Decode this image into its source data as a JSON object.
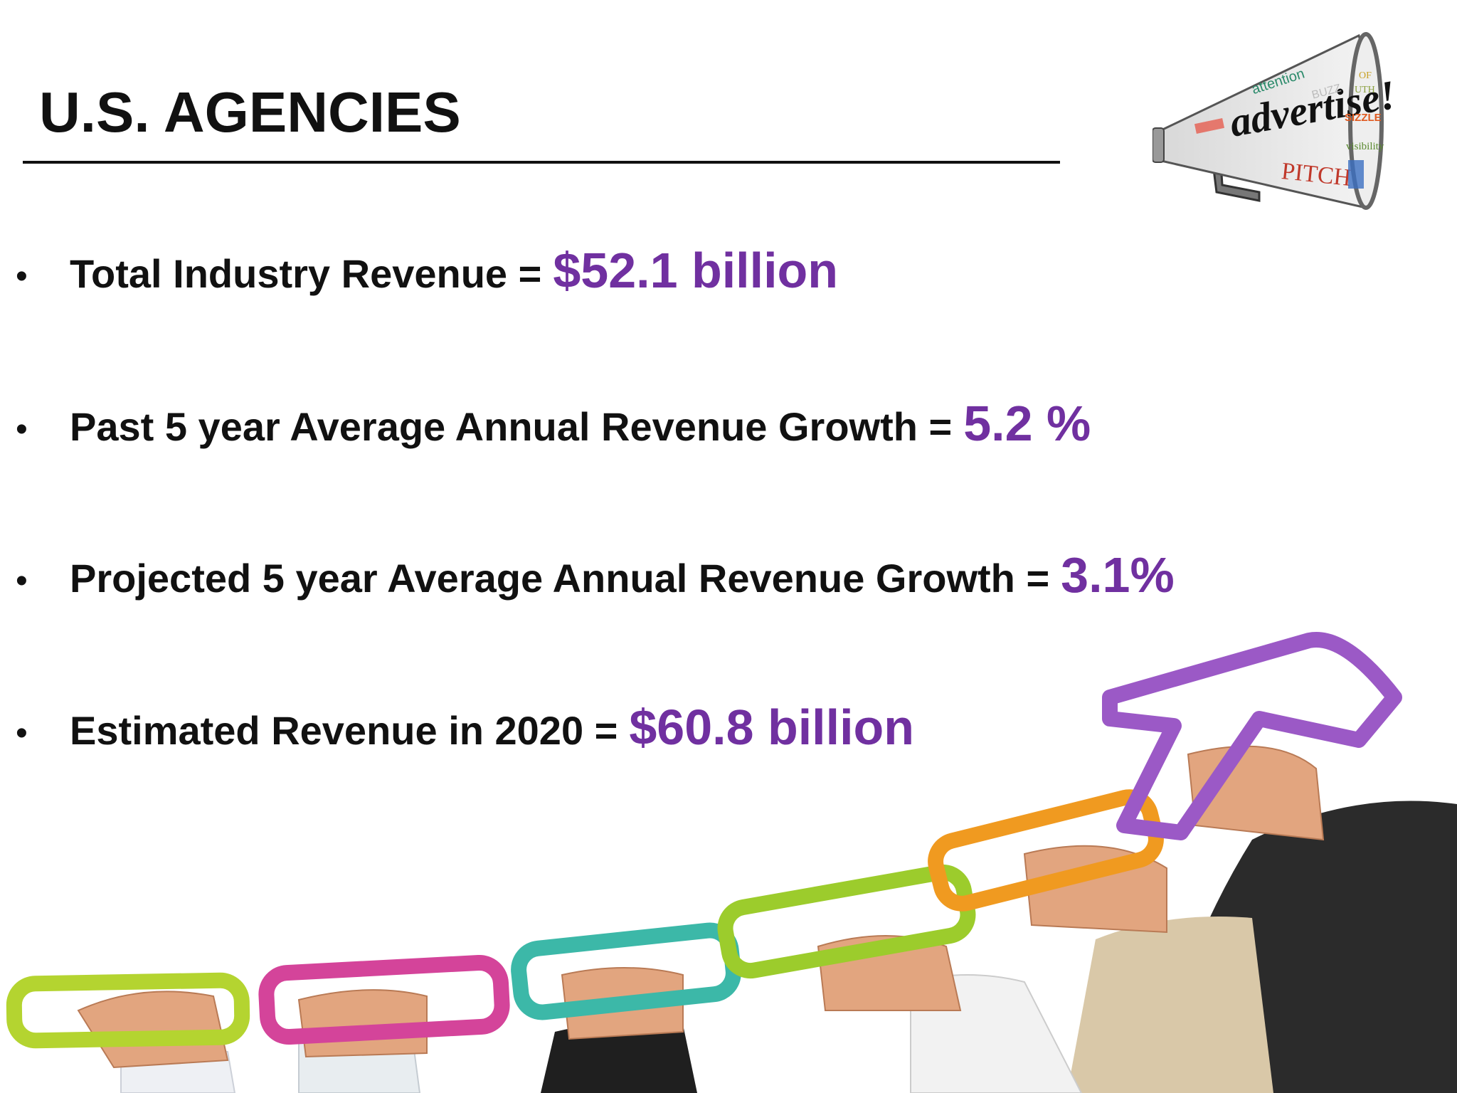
{
  "slide": {
    "title": "U.S. AGENCIES",
    "bullets": [
      {
        "label": "Total Industry Revenue =",
        "value": "$52.1 billion"
      },
      {
        "label": "Past 5 year Average Annual Revenue Growth =",
        "value": "5.2 %"
      },
      {
        "label": "Projected 5 year Average Annual Revenue Growth =",
        "value": "3.1%"
      },
      {
        "label": "Estimated Revenue in 2020 =",
        "value": "$60.8 billion"
      }
    ],
    "bullet_glyph": "•"
  },
  "illustration": {
    "megaphone_text": "advertise!",
    "megaphone_words": [
      "attention",
      "BUZZ",
      "PITCH",
      "SIZZLE",
      "visibility",
      "OF",
      "UTH"
    ]
  },
  "colors": {
    "value_accent": "#7030A0",
    "text": "#111111",
    "ring_colors": [
      "#b4d430",
      "#d4449a",
      "#3cb8a8",
      "#9ccc2c",
      "#f09a20",
      "#9b59c6"
    ]
  }
}
